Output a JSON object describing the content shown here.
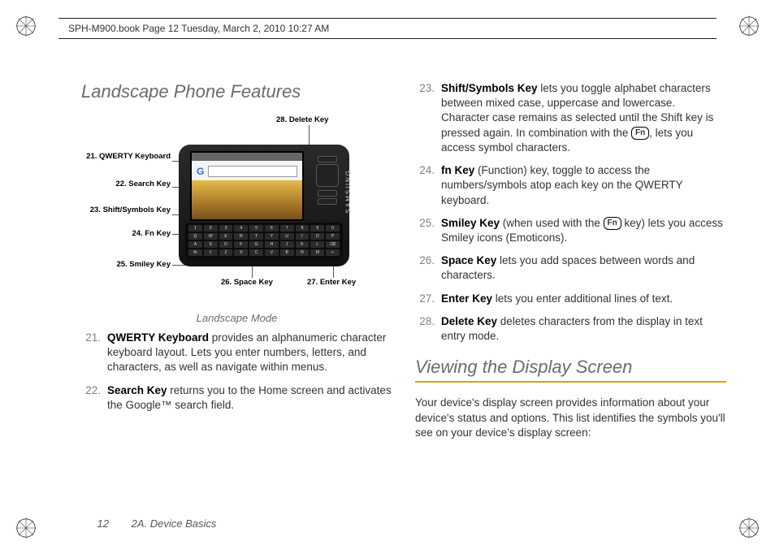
{
  "header": {
    "text": "SPH-M900.book  Page 12  Tuesday, March 2, 2010  10:27 AM"
  },
  "section1_title": "Landscape Phone Features",
  "section2_title": "Viewing the Display Screen",
  "diagram": {
    "caption": "Landscape Mode",
    "labels": {
      "l21": "21. QWERTY Keyboard",
      "l22": "22. Search Key",
      "l23": "23. Shift/Symbols Key",
      "l24": "24. Fn Key",
      "l25": "25. Smiley Key",
      "l26": "26. Space Key",
      "l27": "27. Enter Key",
      "l28": "28. Delete Key"
    },
    "keyboard_letters": {
      "row1": [
        "1",
        "2",
        "3",
        "4",
        "5",
        "6",
        "7",
        "8",
        "9",
        "0"
      ],
      "row2": [
        "Q",
        "W",
        "E",
        "R",
        "T",
        "Y",
        "U",
        "I",
        "O",
        "P"
      ],
      "row3": [
        "A",
        "S",
        "D",
        "F",
        "G",
        "H",
        "J",
        "K",
        "L",
        "⌫"
      ],
      "row4": [
        "fn",
        "⇧",
        "Z",
        "X",
        "C",
        "V",
        "B",
        "N",
        "M",
        "↵"
      ]
    },
    "brand": "SAMSUNG",
    "google_g": "G"
  },
  "left_list": [
    {
      "n": "21.",
      "bold": "QWERTY Keyboard",
      "text": " provides an alphanumeric character keyboard layout. Lets you enter numbers, letters, and characters, as well as navigate within menus."
    },
    {
      "n": "22.",
      "bold": "Search Key",
      "text": " returns you to the Home screen and activates the Google™ search field."
    }
  ],
  "right_list": [
    {
      "n": "23.",
      "bold": "Shift/Symbols Key",
      "pre": " lets you toggle alphabet characters between mixed case, uppercase and lowercase. Character case remains as selected until the Shift key is pressed again. In combination with the ",
      "badge": "Fn",
      "post": ", lets you access symbol characters."
    },
    {
      "n": "24.",
      "bold": "fn Key",
      "text": " (Function) key, toggle to access the numbers/symbols atop each key on the QWERTY keyboard."
    },
    {
      "n": "25.",
      "bold": "Smiley Key",
      "pre": " (when used with the ",
      "badge": "Fn",
      "post": " key) lets you access Smiley icons (Emoticons)."
    },
    {
      "n": "26.",
      "bold": "Space Key",
      "text": " lets you add spaces between words and characters."
    },
    {
      "n": "27.",
      "bold": "Enter Key",
      "text": " lets you enter additional lines of text."
    },
    {
      "n": "28.",
      "bold": "Delete Key",
      "text": " deletes characters from the display in text entry mode."
    }
  ],
  "section2_intro": "Your device's display screen provides information about your device's status and options. This list identifies the symbols you'll see on your device's display screen:",
  "footer": {
    "page": "12",
    "chapter": "2A. Device Basics"
  },
  "colors": {
    "heading": "#6b6b6b",
    "underline": "#d9a300",
    "text": "#333333",
    "numcol": "#808080"
  }
}
